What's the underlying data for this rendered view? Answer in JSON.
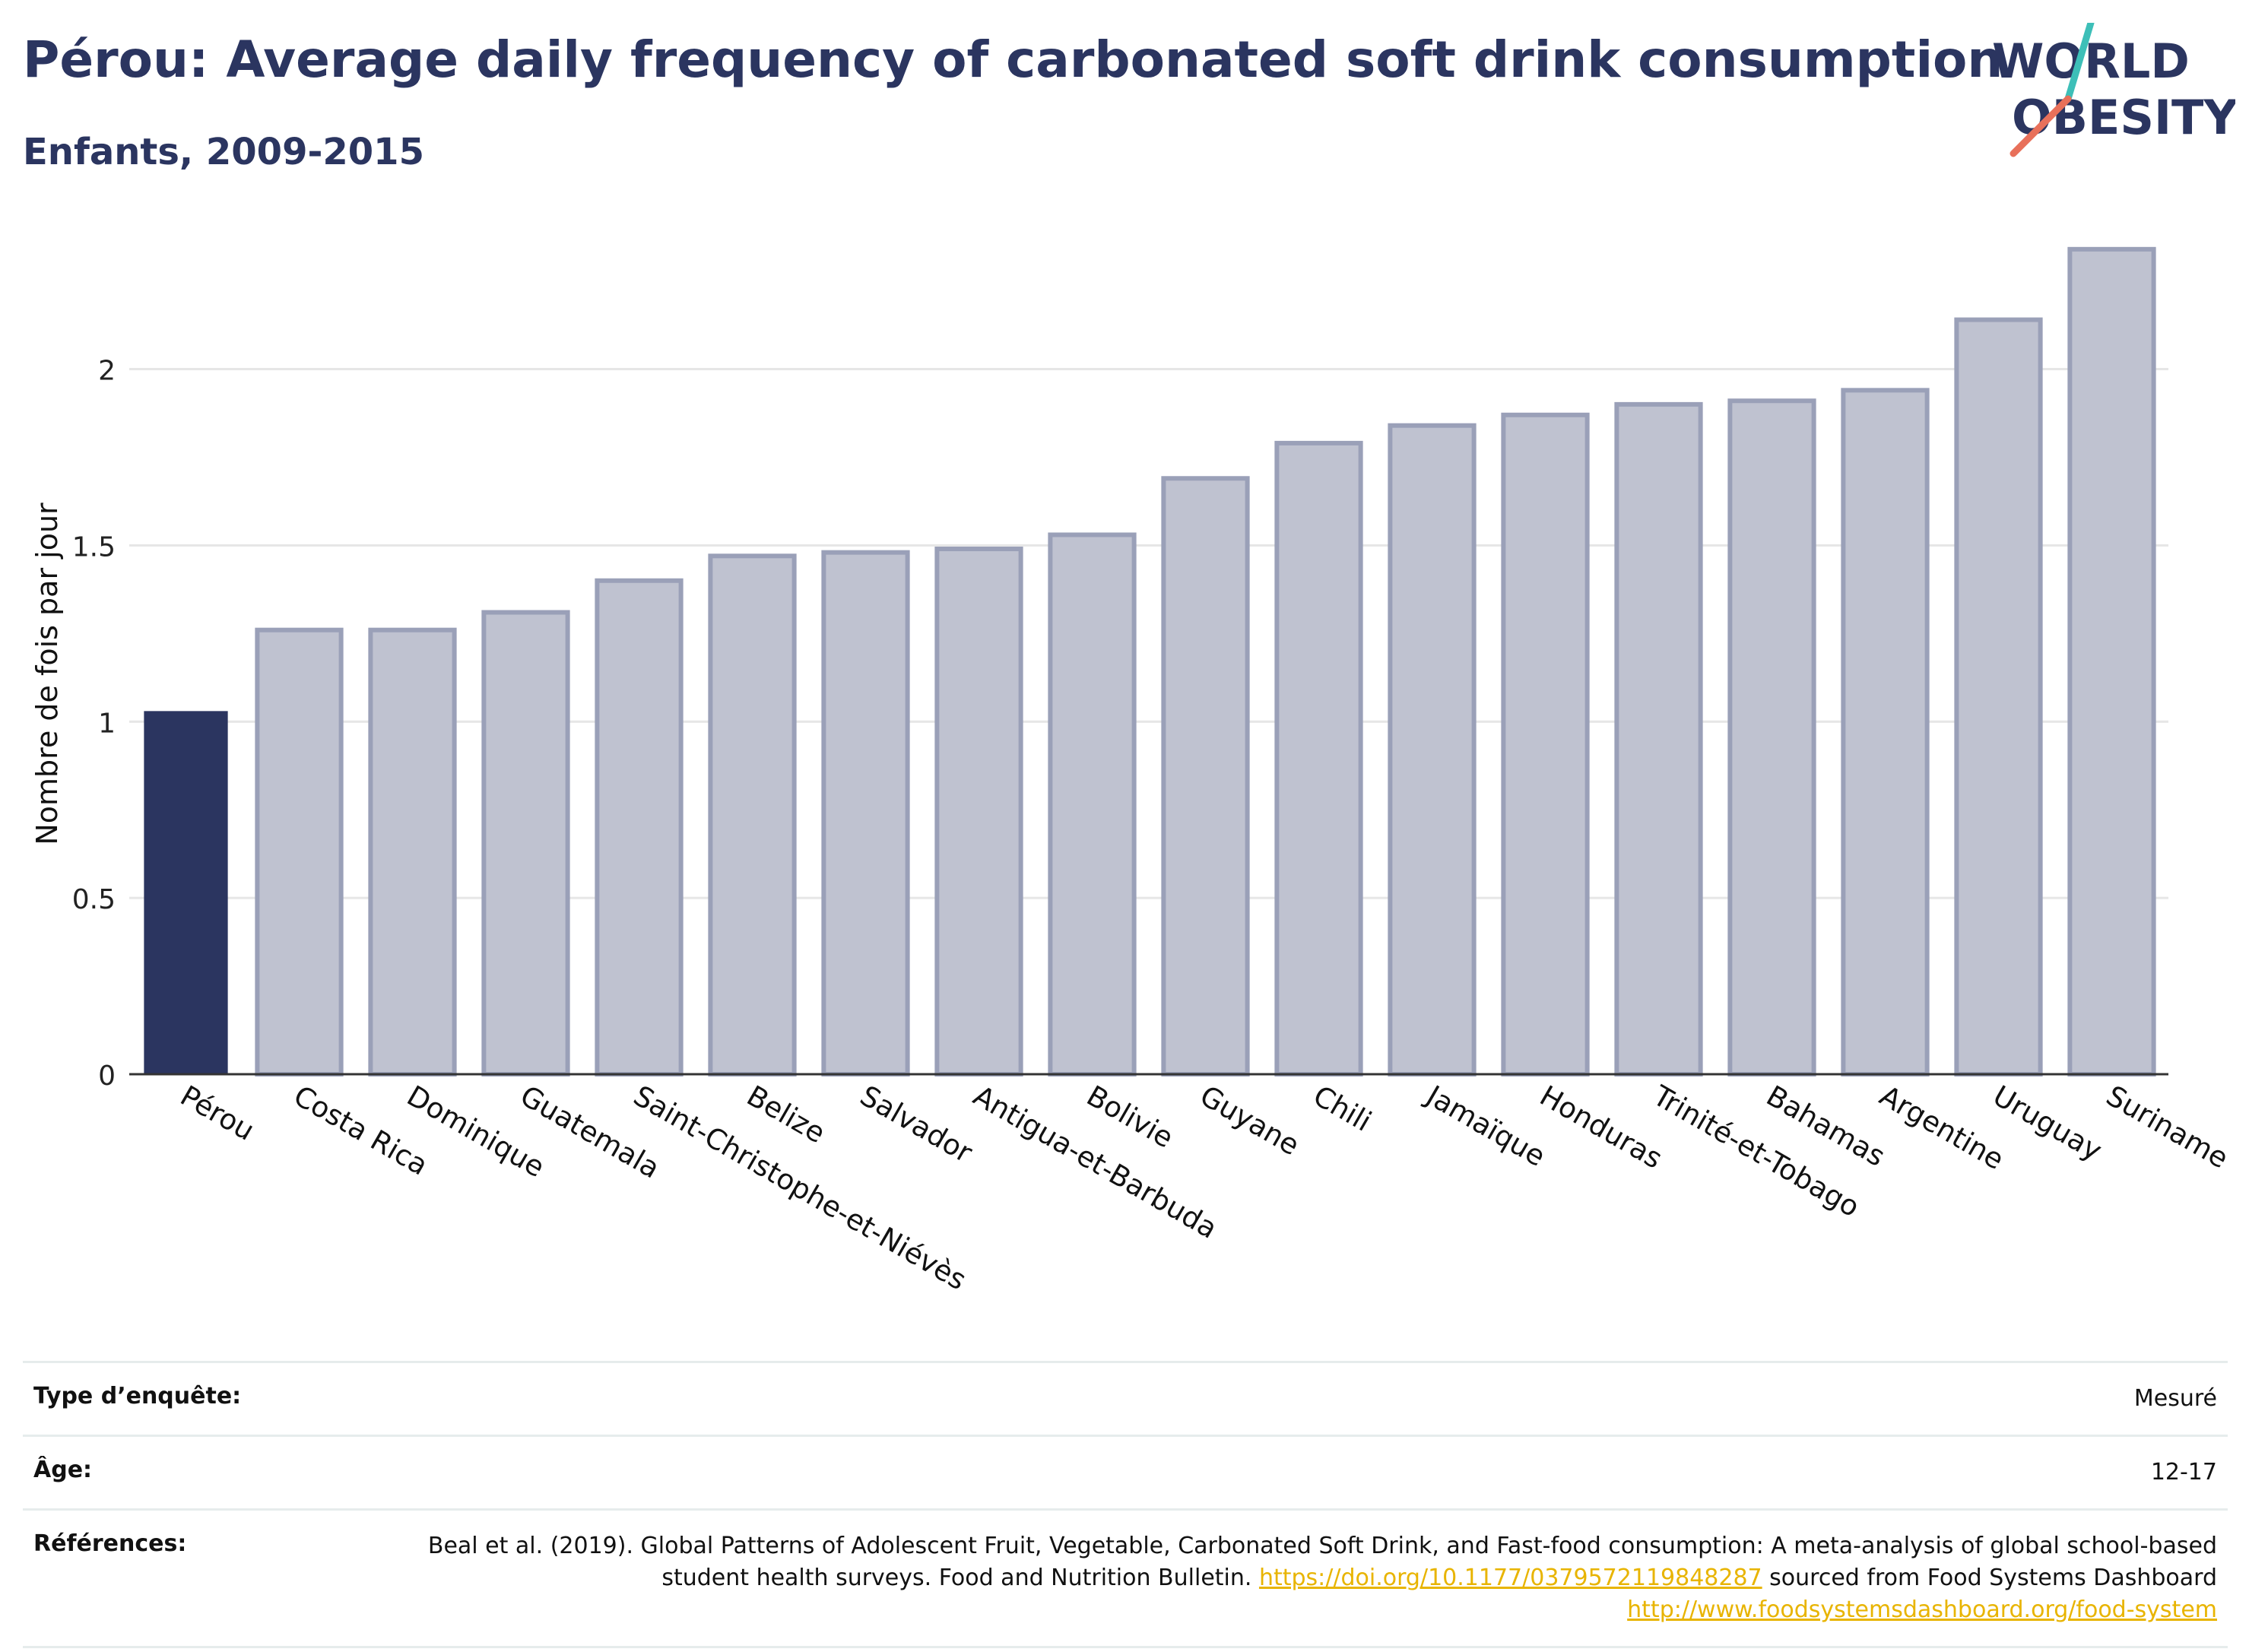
{
  "header": {
    "title": "Pérou: Average daily frequency of carbonated soft drink consumption",
    "subtitle": "Enfants, 2009-2015"
  },
  "logo": {
    "line1": "WORLD",
    "line2": "OBESITY",
    "colors": {
      "text": "#2b3560",
      "stroke_teal": "#3dbfb8",
      "stroke_coral": "#e8705a"
    }
  },
  "chart_data": {
    "type": "bar",
    "title": "Pérou: Average daily frequency of carbonated soft drink consumption",
    "subtitle": "Enfants, 2009-2015",
    "xlabel": "",
    "ylabel": "Nombre de fois par jour",
    "ylim": [
      0,
      2.4
    ],
    "yticks": [
      0,
      0.5,
      1,
      1.5,
      2
    ],
    "ytick_labels": [
      "0",
      "0.5",
      "1",
      "1.5",
      "2"
    ],
    "grid": true,
    "legend": "none",
    "highlight": "Pérou",
    "colors": {
      "highlight": "#2b3560",
      "bar_fill": "#bfc2d0",
      "bar_stroke": "#9aa0b8",
      "grid": "#e6e6e6",
      "axis": "#333333"
    },
    "categories": [
      "Pérou",
      "Costa Rica",
      "Dominique",
      "Guatemala",
      "Saint-Christophe-et-Niévès",
      "Belize",
      "Salvador",
      "Antigua-et-Barbuda",
      "Bolivie",
      "Guyane",
      "Chili",
      "Jamaïque",
      "Honduras",
      "Trinité-et-Tobago",
      "Bahamas",
      "Argentine",
      "Uruguay",
      "Suriname"
    ],
    "values": [
      1.03,
      1.26,
      1.26,
      1.31,
      1.4,
      1.47,
      1.48,
      1.49,
      1.53,
      1.69,
      1.79,
      1.84,
      1.87,
      1.9,
      1.91,
      1.94,
      2.14,
      2.34
    ]
  },
  "info": {
    "rows": [
      {
        "label": "Type d’enquête:",
        "value": "Mesuré"
      },
      {
        "label": "Âge:",
        "value": "12-17"
      }
    ],
    "references": {
      "label": "Références:",
      "text1": "Beal et al. (2019). Global Patterns of Adolescent Fruit, Vegetable, Carbonated Soft Drink, and Fast-food consumption: A meta-analysis of global school-based student health surveys. Food and Nutrition Bulletin. ",
      "link1": "https://doi.org/10.1177/0379572119848287",
      "text2": " sourced from Food Systems Dashboard ",
      "link2": "http://www.foodsystemsdashboard.org/food-system"
    }
  }
}
